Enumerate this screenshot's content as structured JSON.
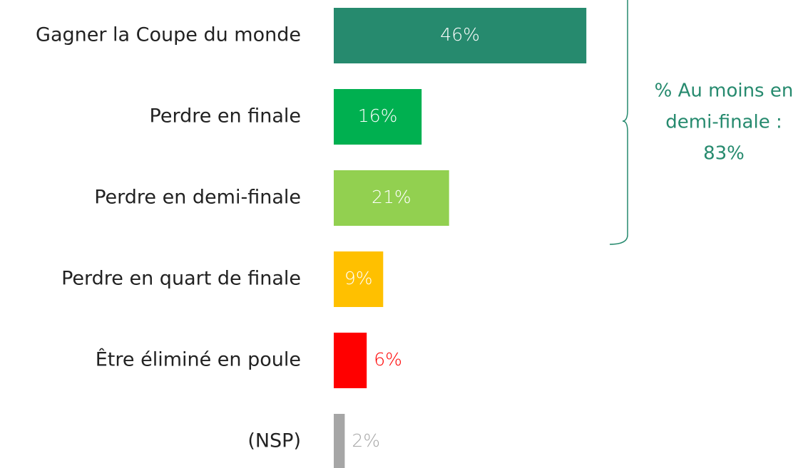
{
  "chart_data": {
    "type": "hbar",
    "categories": [
      "Gagner la Coupe du monde",
      "Perdre en finale",
      "Perdre en demi-finale",
      "Perdre en quart de finale",
      "Être éliminé en poule",
      "(NSP)"
    ],
    "values": [
      46,
      16,
      21,
      9,
      6,
      2
    ],
    "value_labels": [
      "46%",
      "16%",
      "21%",
      "9%",
      "6%",
      "2%"
    ],
    "colors": [
      "#268a6e",
      "#00b050",
      "#92d050",
      "#ffc000",
      "#ff0000",
      "#a6a6a6"
    ],
    "label_colors": [
      "#ffffff",
      "#ffffff",
      "#ffffff",
      "#ffffff",
      "#ff0000",
      "#a6a6a6"
    ],
    "annotation": [
      "% Au moins en",
      "demi-finale :",
      "83%"
    ],
    "annotation_color": "#268a6e"
  }
}
